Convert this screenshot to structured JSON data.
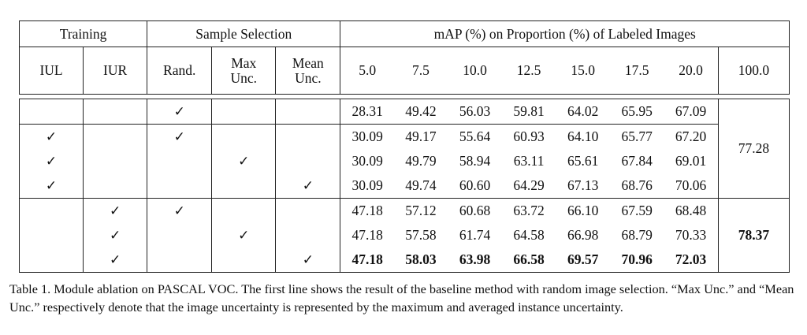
{
  "header": {
    "group_training": "Training",
    "group_sample_selection": "Sample Selection",
    "group_map": "mAP (%) on Proportion (%) of Labeled Images",
    "col_iul": "IUL",
    "col_iur": "IUR",
    "col_rand": "Rand.",
    "col_max_line1": "Max",
    "col_max_line2": "Unc.",
    "col_mean_line1": "Mean",
    "col_mean_line2": "Unc.",
    "proportions": [
      "5.0",
      "7.5",
      "10.0",
      "12.5",
      "15.0",
      "17.5",
      "20.0",
      "100.0"
    ]
  },
  "check_mark": "✓",
  "rows": [
    {
      "iul": false,
      "iur": false,
      "rand": true,
      "max": false,
      "mean": false,
      "values": [
        "28.31",
        "49.42",
        "56.03",
        "59.81",
        "64.02",
        "65.95",
        "67.09"
      ],
      "bold": false
    },
    {
      "iul": true,
      "iur": false,
      "rand": true,
      "max": false,
      "mean": false,
      "values": [
        "30.09",
        "49.17",
        "55.64",
        "60.93",
        "64.10",
        "65.77",
        "67.20"
      ],
      "bold": false
    },
    {
      "iul": true,
      "iur": false,
      "rand": false,
      "max": true,
      "mean": false,
      "values": [
        "30.09",
        "49.79",
        "58.94",
        "63.11",
        "65.61",
        "67.84",
        "69.01"
      ],
      "bold": false
    },
    {
      "iul": true,
      "iur": false,
      "rand": false,
      "max": false,
      "mean": true,
      "values": [
        "30.09",
        "49.74",
        "60.60",
        "64.29",
        "67.13",
        "68.76",
        "70.06"
      ],
      "bold": false
    },
    {
      "iul": false,
      "iur": true,
      "rand": true,
      "max": false,
      "mean": false,
      "values": [
        "47.18",
        "57.12",
        "60.68",
        "63.72",
        "66.10",
        "67.59",
        "68.48"
      ],
      "bold": false
    },
    {
      "iul": false,
      "iur": true,
      "rand": false,
      "max": true,
      "mean": false,
      "values": [
        "47.18",
        "57.58",
        "61.74",
        "64.58",
        "66.98",
        "68.79",
        "70.33"
      ],
      "bold": false
    },
    {
      "iul": false,
      "iur": true,
      "rand": false,
      "max": false,
      "mean": true,
      "values": [
        "47.18",
        "58.03",
        "63.98",
        "66.58",
        "69.57",
        "70.96",
        "72.03"
      ],
      "bold": true
    }
  ],
  "full_label": {
    "block1": "77.28",
    "block2": "78.37"
  },
  "caption": "Table 1. Module ablation on PASCAL VOC. The first line shows the result of the baseline method with random image selection. “Max Unc.” and “Mean Unc.” respectively denote that the image uncertainty is represented by the maximum and averaged instance uncertainty."
}
